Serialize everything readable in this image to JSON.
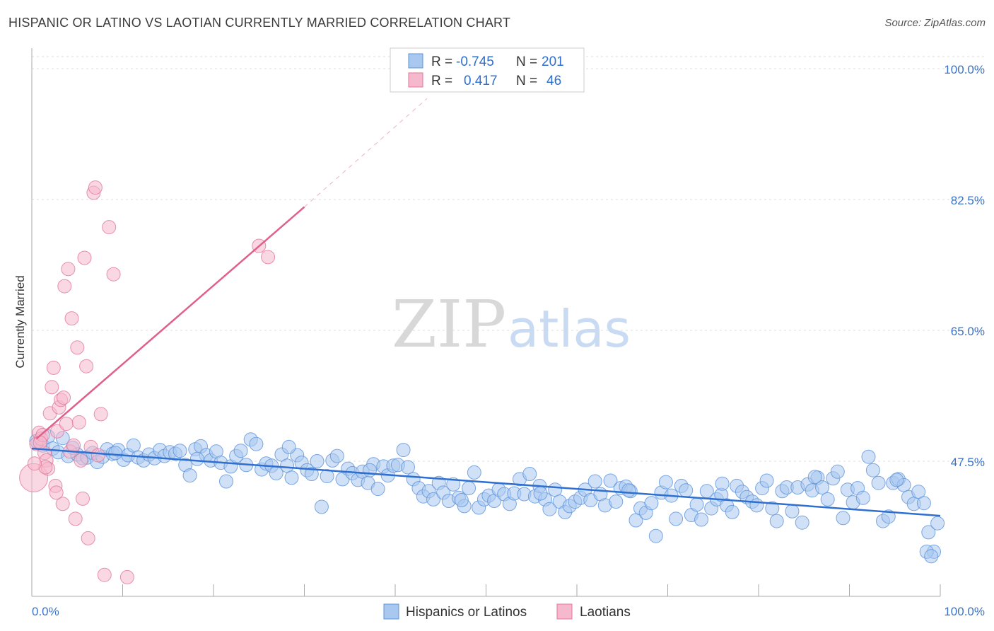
{
  "header": {
    "title": "HISPANIC OR LATINO VS LAOTIAN CURRENTLY MARRIED CORRELATION CHART",
    "source": "Source: ZipAtlas.com"
  },
  "legend_top": {
    "rows": [
      {
        "r_label": "R =",
        "r_value": "-0.745",
        "n_label": "N =",
        "n_value": "201",
        "color": "#a9c8f0"
      },
      {
        "r_label": "R =",
        "r_value": "0.417",
        "n_label": "N =",
        "n_value": "46",
        "color": "#f5b8cc"
      }
    ]
  },
  "watermark": {
    "zip": "ZIP",
    "atlas": "atlas"
  },
  "chart_data": {
    "type": "scatter",
    "ylabel": "Currently Married",
    "xlim": [
      0,
      100
    ],
    "ylim": [
      30,
      102
    ],
    "y_ticks": [
      {
        "value": 100,
        "label": "100.0%"
      },
      {
        "value": 82.5,
        "label": "82.5%"
      },
      {
        "value": 65,
        "label": "65.0%"
      },
      {
        "value": 47.5,
        "label": "47.5%"
      }
    ],
    "x_tick_labels": [
      {
        "value": 0,
        "label": "0.0%"
      },
      {
        "value": 100,
        "label": "100.0%"
      }
    ],
    "grid": true,
    "series": [
      {
        "name": "Hispanics or Latinos",
        "color": "#5b93dc",
        "fill": "#a9c8f0",
        "trend": {
          "x0": 0,
          "y0": 49.2,
          "x1": 100,
          "y1": 40.2,
          "color": "#2f6fd0"
        },
        "points": [
          [
            0.5,
            50.2
          ],
          [
            1.2,
            49.6
          ],
          [
            1.8,
            50.8
          ],
          [
            2.3,
            49.2
          ],
          [
            2.9,
            48.7
          ],
          [
            3.4,
            50.6
          ],
          [
            4.0,
            48.2
          ],
          [
            4.5,
            49.3
          ],
          [
            5.0,
            48.4
          ],
          [
            5.6,
            47.9
          ],
          [
            6.1,
            48.0
          ],
          [
            6.7,
            48.6
          ],
          [
            7.2,
            47.4
          ],
          [
            7.8,
            48.1
          ],
          [
            8.3,
            49.1
          ],
          [
            8.9,
            48.5
          ],
          [
            9.5,
            49.0
          ],
          [
            10.1,
            47.7
          ],
          [
            10.6,
            48.3
          ],
          [
            11.2,
            49.6
          ],
          [
            11.7,
            48.0
          ],
          [
            12.3,
            47.6
          ],
          [
            12.9,
            48.4
          ],
          [
            13.5,
            47.9
          ],
          [
            14.1,
            49.0
          ],
          [
            14.6,
            48.2
          ],
          [
            15.2,
            48.7
          ],
          [
            15.8,
            48.5
          ],
          [
            16.3,
            48.9
          ],
          [
            16.9,
            47.0
          ],
          [
            17.4,
            45.6
          ],
          [
            18.0,
            49.1
          ],
          [
            18.6,
            49.5
          ],
          [
            19.2,
            48.3
          ],
          [
            19.7,
            47.6
          ],
          [
            20.3,
            48.8
          ],
          [
            20.8,
            47.3
          ],
          [
            21.4,
            44.8
          ],
          [
            21.9,
            46.8
          ],
          [
            22.5,
            48.2
          ],
          [
            23.0,
            48.9
          ],
          [
            23.6,
            47.0
          ],
          [
            24.1,
            50.4
          ],
          [
            24.7,
            49.8
          ],
          [
            25.3,
            46.4
          ],
          [
            25.8,
            47.2
          ],
          [
            26.4,
            46.9
          ],
          [
            26.9,
            45.9
          ],
          [
            27.5,
            48.4
          ],
          [
            28.1,
            46.9
          ],
          [
            28.6,
            45.3
          ],
          [
            29.2,
            48.3
          ],
          [
            29.7,
            47.3
          ],
          [
            30.3,
            46.3
          ],
          [
            30.8,
            45.8
          ],
          [
            31.4,
            47.5
          ],
          [
            31.9,
            41.4
          ],
          [
            32.5,
            45.5
          ],
          [
            33.1,
            47.6
          ],
          [
            33.6,
            48.2
          ],
          [
            34.2,
            45.1
          ],
          [
            34.8,
            46.5
          ],
          [
            35.3,
            45.9
          ],
          [
            35.9,
            45.0
          ],
          [
            36.4,
            46.1
          ],
          [
            37.0,
            44.6
          ],
          [
            37.6,
            47.1
          ],
          [
            38.1,
            43.8
          ],
          [
            38.7,
            46.8
          ],
          [
            39.2,
            45.6
          ],
          [
            39.8,
            46.9
          ],
          [
            40.3,
            47.0
          ],
          [
            40.9,
            49.0
          ],
          [
            41.4,
            46.7
          ],
          [
            42.0,
            45.1
          ],
          [
            42.6,
            43.9
          ],
          [
            43.1,
            42.8
          ],
          [
            43.7,
            43.5
          ],
          [
            44.2,
            42.4
          ],
          [
            44.8,
            44.6
          ],
          [
            45.3,
            43.3
          ],
          [
            45.9,
            42.2
          ],
          [
            46.4,
            44.4
          ],
          [
            47.0,
            42.6
          ],
          [
            47.6,
            41.5
          ],
          [
            48.1,
            43.9
          ],
          [
            48.7,
            46.0
          ],
          [
            49.2,
            41.3
          ],
          [
            49.8,
            42.4
          ],
          [
            50.3,
            42.9
          ],
          [
            50.9,
            42.2
          ],
          [
            51.4,
            43.7
          ],
          [
            52.0,
            43.1
          ],
          [
            52.6,
            41.8
          ],
          [
            53.1,
            43.2
          ],
          [
            53.7,
            45.1
          ],
          [
            54.2,
            43.1
          ],
          [
            54.8,
            45.8
          ],
          [
            55.4,
            42.8
          ],
          [
            55.9,
            44.2
          ],
          [
            56.5,
            42.4
          ],
          [
            57.0,
            41.1
          ],
          [
            57.6,
            43.7
          ],
          [
            58.1,
            42.1
          ],
          [
            58.7,
            40.7
          ],
          [
            59.2,
            41.5
          ],
          [
            59.8,
            42.1
          ],
          [
            60.4,
            42.6
          ],
          [
            60.9,
            43.7
          ],
          [
            61.5,
            42.3
          ],
          [
            62.0,
            44.8
          ],
          [
            62.6,
            43.1
          ],
          [
            63.1,
            41.6
          ],
          [
            63.7,
            44.9
          ],
          [
            64.3,
            42.1
          ],
          [
            64.8,
            43.9
          ],
          [
            65.4,
            44.1
          ],
          [
            65.9,
            43.5
          ],
          [
            66.5,
            39.6
          ],
          [
            67.0,
            41.2
          ],
          [
            67.6,
            40.6
          ],
          [
            68.2,
            41.9
          ],
          [
            68.7,
            37.5
          ],
          [
            69.3,
            43.3
          ],
          [
            69.8,
            44.7
          ],
          [
            70.4,
            42.9
          ],
          [
            70.9,
            39.8
          ],
          [
            71.5,
            44.2
          ],
          [
            72.0,
            43.6
          ],
          [
            72.6,
            40.3
          ],
          [
            73.2,
            41.7
          ],
          [
            73.7,
            39.7
          ],
          [
            74.3,
            43.5
          ],
          [
            74.8,
            41.2
          ],
          [
            75.4,
            42.4
          ],
          [
            75.9,
            43.0
          ],
          [
            76.5,
            41.6
          ],
          [
            77.1,
            40.7
          ],
          [
            77.6,
            44.2
          ],
          [
            78.2,
            43.4
          ],
          [
            78.7,
            42.7
          ],
          [
            79.3,
            42.1
          ],
          [
            79.8,
            41.6
          ],
          [
            80.4,
            43.9
          ],
          [
            80.9,
            44.9
          ],
          [
            81.5,
            41.2
          ],
          [
            82.0,
            39.5
          ],
          [
            82.6,
            43.5
          ],
          [
            83.1,
            44.0
          ],
          [
            83.7,
            40.8
          ],
          [
            84.3,
            44.0
          ],
          [
            84.8,
            39.3
          ],
          [
            85.4,
            44.4
          ],
          [
            85.9,
            43.6
          ],
          [
            86.5,
            45.3
          ],
          [
            87.0,
            44.0
          ],
          [
            87.6,
            42.4
          ],
          [
            88.2,
            45.2
          ],
          [
            88.7,
            46.1
          ],
          [
            89.3,
            39.9
          ],
          [
            89.8,
            43.7
          ],
          [
            90.4,
            42.0
          ],
          [
            90.9,
            43.9
          ],
          [
            91.5,
            42.6
          ],
          [
            92.1,
            48.1
          ],
          [
            92.6,
            46.3
          ],
          [
            93.2,
            44.6
          ],
          [
            93.7,
            39.5
          ],
          [
            94.3,
            40.1
          ],
          [
            94.8,
            44.6
          ],
          [
            95.4,
            45.1
          ],
          [
            96.0,
            44.3
          ],
          [
            96.5,
            42.7
          ],
          [
            97.1,
            41.8
          ],
          [
            97.6,
            43.4
          ],
          [
            98.2,
            41.9
          ],
          [
            98.7,
            38.0
          ],
          [
            99.3,
            35.4
          ],
          [
            99.7,
            39.2
          ],
          [
            98.5,
            35.4
          ],
          [
            99.0,
            34.8
          ],
          [
            95.2,
            45.0
          ],
          [
            86.2,
            45.4
          ],
          [
            76.0,
            44.5
          ],
          [
            65.7,
            43.6
          ],
          [
            56.0,
            43.2
          ],
          [
            47.3,
            42.3
          ],
          [
            37.2,
            46.3
          ],
          [
            28.3,
            49.4
          ],
          [
            18.2,
            47.8
          ],
          [
            9.2,
            48.6
          ]
        ]
      },
      {
        "name": "Laotians",
        "color": "#e0789a",
        "fill": "#f5b8cc",
        "trend": {
          "x0": 0.5,
          "y0": 50.5,
          "x1": 30,
          "y1": 81.5,
          "x2": 43.5,
          "y2": 96.0,
          "color": "#e0608a"
        },
        "points": [
          [
            0.2,
            45.3
          ],
          [
            0.5,
            49.8
          ],
          [
            0.8,
            51.3
          ],
          [
            1.0,
            50.5
          ],
          [
            1.2,
            51.0
          ],
          [
            1.4,
            48.6
          ],
          [
            1.6,
            47.6
          ],
          [
            1.8,
            46.5
          ],
          [
            2.0,
            53.9
          ],
          [
            2.2,
            57.4
          ],
          [
            2.4,
            60.0
          ],
          [
            2.6,
            44.2
          ],
          [
            2.8,
            51.5
          ],
          [
            3.0,
            54.7
          ],
          [
            3.2,
            55.7
          ],
          [
            3.4,
            41.8
          ],
          [
            3.6,
            70.9
          ],
          [
            3.8,
            52.5
          ],
          [
            4.0,
            73.2
          ],
          [
            4.2,
            48.8
          ],
          [
            4.4,
            66.6
          ],
          [
            4.6,
            49.6
          ],
          [
            4.8,
            39.8
          ],
          [
            5.0,
            62.7
          ],
          [
            5.2,
            52.7
          ],
          [
            5.4,
            47.6
          ],
          [
            5.6,
            42.5
          ],
          [
            5.8,
            74.7
          ],
          [
            6.0,
            60.2
          ],
          [
            6.2,
            37.2
          ],
          [
            6.5,
            49.4
          ],
          [
            6.8,
            83.4
          ],
          [
            7.0,
            84.1
          ],
          [
            7.3,
            48.3
          ],
          [
            7.6,
            53.8
          ],
          [
            8.0,
            32.3
          ],
          [
            8.5,
            78.8
          ],
          [
            9.0,
            72.5
          ],
          [
            10.5,
            32.0
          ],
          [
            25.0,
            76.3
          ],
          [
            26.0,
            74.8
          ],
          [
            1.5,
            46.7
          ],
          [
            2.7,
            43.3
          ],
          [
            0.9,
            50.0
          ],
          [
            3.5,
            56.0
          ],
          [
            0.3,
            47.2
          ]
        ]
      }
    ]
  }
}
